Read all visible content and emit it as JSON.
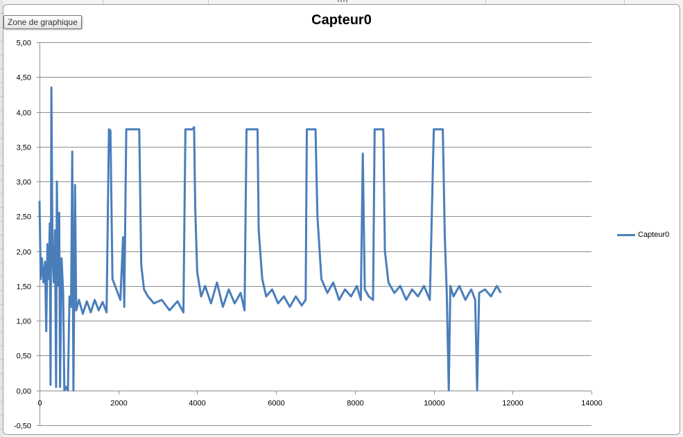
{
  "tooltip": "Zone de graphique",
  "chart_data": {
    "type": "line",
    "title": "Capteur0",
    "xlabel": "",
    "ylabel": "",
    "xlim": [
      0,
      14000
    ],
    "ylim": [
      -0.5,
      5.0
    ],
    "x_ticks": [
      0,
      2000,
      4000,
      6000,
      8000,
      10000,
      12000,
      14000
    ],
    "x_tick_labels": [
      "0",
      "2000",
      "4000",
      "6000",
      "8000",
      "10000",
      "12000",
      "14000"
    ],
    "y_ticks": [
      -0.5,
      0,
      0.5,
      1.0,
      1.5,
      2.0,
      2.5,
      3.0,
      3.5,
      4.0,
      4.5,
      5.0
    ],
    "y_tick_labels": [
      "-0,50",
      "0,00",
      "0,50",
      "1,00",
      "1,50",
      "2,00",
      "2,50",
      "3,00",
      "3,50",
      "4,00",
      "4,50",
      "5,00"
    ],
    "grid": true,
    "legend_position": "right",
    "series": [
      {
        "name": "Capteur0",
        "color": "#4a7ebb",
        "points": [
          [
            0,
            2.72
          ],
          [
            30,
            1.6
          ],
          [
            60,
            1.9
          ],
          [
            100,
            1.55
          ],
          [
            140,
            1.85
          ],
          [
            170,
            0.85
          ],
          [
            200,
            2.1
          ],
          [
            230,
            1.6
          ],
          [
            260,
            2.4
          ],
          [
            280,
            0.08
          ],
          [
            300,
            4.35
          ],
          [
            330,
            1.9
          ],
          [
            360,
            1.55
          ],
          [
            390,
            2.3
          ],
          [
            420,
            0.05
          ],
          [
            440,
            3.0
          ],
          [
            470,
            1.5
          ],
          [
            500,
            2.55
          ],
          [
            520,
            0.05
          ],
          [
            560,
            1.9
          ],
          [
            600,
            1.4
          ],
          [
            630,
            0.0
          ],
          [
            680,
            0.05
          ],
          [
            720,
            0.0
          ],
          [
            760,
            1.35
          ],
          [
            800,
            1.2
          ],
          [
            830,
            3.43
          ],
          [
            860,
            0.0
          ],
          [
            900,
            2.95
          ],
          [
            930,
            1.15
          ],
          [
            1000,
            1.3
          ],
          [
            1100,
            1.1
          ],
          [
            1200,
            1.28
          ],
          [
            1300,
            1.12
          ],
          [
            1400,
            1.3
          ],
          [
            1500,
            1.15
          ],
          [
            1600,
            1.27
          ],
          [
            1700,
            1.12
          ],
          [
            1760,
            3.75
          ],
          [
            1800,
            3.73
          ],
          [
            1850,
            1.6
          ],
          [
            1950,
            1.45
          ],
          [
            2050,
            1.3
          ],
          [
            2120,
            2.2
          ],
          [
            2150,
            1.2
          ],
          [
            2200,
            3.75
          ],
          [
            2530,
            3.75
          ],
          [
            2580,
            1.8
          ],
          [
            2650,
            1.45
          ],
          [
            2750,
            1.35
          ],
          [
            2900,
            1.25
          ],
          [
            3100,
            1.3
          ],
          [
            3300,
            1.15
          ],
          [
            3500,
            1.28
          ],
          [
            3650,
            1.12
          ],
          [
            3700,
            3.75
          ],
          [
            3880,
            3.75
          ],
          [
            3920,
            3.78
          ],
          [
            3950,
            2.6
          ],
          [
            4000,
            1.7
          ],
          [
            4100,
            1.35
          ],
          [
            4200,
            1.5
          ],
          [
            4350,
            1.25
          ],
          [
            4500,
            1.55
          ],
          [
            4650,
            1.2
          ],
          [
            4800,
            1.45
          ],
          [
            4950,
            1.25
          ],
          [
            5100,
            1.4
          ],
          [
            5200,
            1.15
          ],
          [
            5250,
            3.75
          ],
          [
            5530,
            3.75
          ],
          [
            5560,
            2.3
          ],
          [
            5650,
            1.6
          ],
          [
            5750,
            1.35
          ],
          [
            5900,
            1.45
          ],
          [
            6050,
            1.25
          ],
          [
            6200,
            1.35
          ],
          [
            6350,
            1.2
          ],
          [
            6500,
            1.35
          ],
          [
            6650,
            1.22
          ],
          [
            6750,
            1.3
          ],
          [
            6780,
            3.75
          ],
          [
            7000,
            3.75
          ],
          [
            7050,
            2.5
          ],
          [
            7150,
            1.6
          ],
          [
            7300,
            1.4
          ],
          [
            7450,
            1.55
          ],
          [
            7600,
            1.3
          ],
          [
            7750,
            1.45
          ],
          [
            7900,
            1.35
          ],
          [
            8050,
            1.5
          ],
          [
            8150,
            1.3
          ],
          [
            8200,
            3.4
          ],
          [
            8250,
            1.45
          ],
          [
            8350,
            1.35
          ],
          [
            8460,
            1.3
          ],
          [
            8500,
            3.75
          ],
          [
            8720,
            3.75
          ],
          [
            8760,
            2.0
          ],
          [
            8850,
            1.55
          ],
          [
            9000,
            1.4
          ],
          [
            9150,
            1.5
          ],
          [
            9300,
            1.3
          ],
          [
            9450,
            1.45
          ],
          [
            9600,
            1.35
          ],
          [
            9750,
            1.5
          ],
          [
            9900,
            1.3
          ],
          [
            10000,
            3.75
          ],
          [
            10230,
            3.75
          ],
          [
            10280,
            2.2
          ],
          [
            10330,
            1.4
          ],
          [
            10380,
            0.0
          ],
          [
            10420,
            1.5
          ],
          [
            10500,
            1.35
          ],
          [
            10650,
            1.5
          ],
          [
            10800,
            1.3
          ],
          [
            10950,
            1.45
          ],
          [
            11050,
            1.3
          ],
          [
            11100,
            0.0
          ],
          [
            11150,
            1.4
          ],
          [
            11300,
            1.45
          ],
          [
            11450,
            1.35
          ],
          [
            11600,
            1.5
          ],
          [
            11700,
            1.4
          ]
        ]
      }
    ]
  }
}
